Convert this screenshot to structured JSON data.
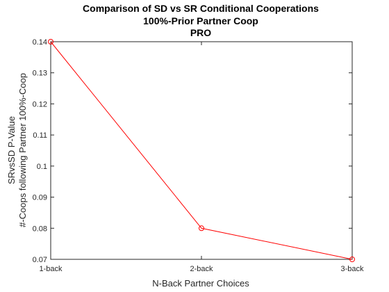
{
  "chart_data": {
    "type": "line",
    "title": [
      "Comparison of SD vs SR Conditional Cooperations",
      "100%-Prior Partner Coop",
      "PRO"
    ],
    "xlabel": "N-Back Partner Choices",
    "ylabel": [
      "SRvsSD P-Value",
      "#-Coops following Partner 100%-Coop"
    ],
    "categories": [
      "1-back",
      "2-back",
      "3-back"
    ],
    "series": [
      {
        "values": [
          0.14,
          0.08,
          0.07
        ],
        "color": "#ff0000",
        "marker": "circle"
      }
    ],
    "ylim": [
      0.07,
      0.14
    ],
    "yticks": [
      "0.07",
      "0.08",
      "0.09",
      "0.1",
      "0.11",
      "0.12",
      "0.13",
      "0.14"
    ],
    "grid": false,
    "legend": "none"
  }
}
